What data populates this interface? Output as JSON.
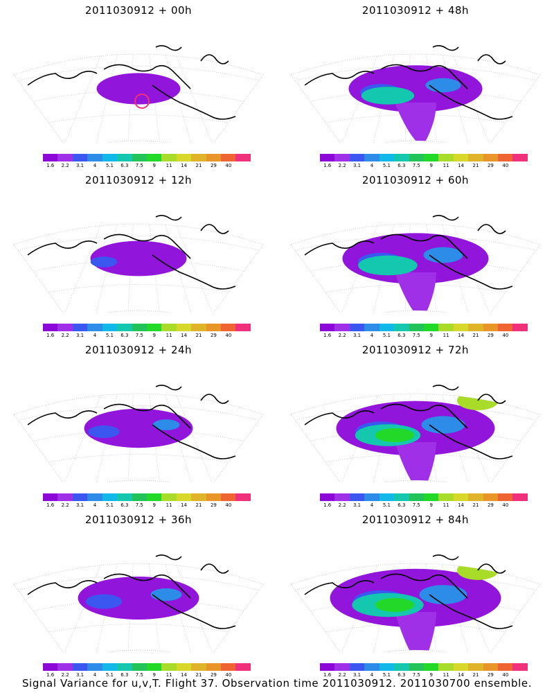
{
  "panels": [
    {
      "title": "2011030912 + 00h",
      "level": 0
    },
    {
      "title": "2011030912 + 48h",
      "level": 4
    },
    {
      "title": "2011030912 + 12h",
      "level": 1
    },
    {
      "title": "2011030912 + 60h",
      "level": 5
    },
    {
      "title": "2011030912 + 24h",
      "level": 2
    },
    {
      "title": "2011030912 + 72h",
      "level": 6
    },
    {
      "title": "2011030912 + 36h",
      "level": 3
    },
    {
      "title": "2011030912 + 84h",
      "level": 7
    }
  ],
  "colorbar": {
    "colors": [
      "#8b08d8",
      "#a030e8",
      "#3c56f0",
      "#2c8ce8",
      "#12b8e8",
      "#14c8b0",
      "#22c45a",
      "#22d828",
      "#a8dc28",
      "#d8d82a",
      "#e0b428",
      "#e89628",
      "#f06434",
      "#f0307a"
    ],
    "ticks": [
      "1.6",
      "2.2",
      "3.1",
      "4",
      "5.1",
      "6.3",
      "7.5",
      "9",
      "11",
      "14",
      "21",
      "29",
      "40"
    ]
  },
  "footer": "Signal Variance for u,v,T. Flight 37. Observation time 2011030912. 2011030700 ensemble."
}
